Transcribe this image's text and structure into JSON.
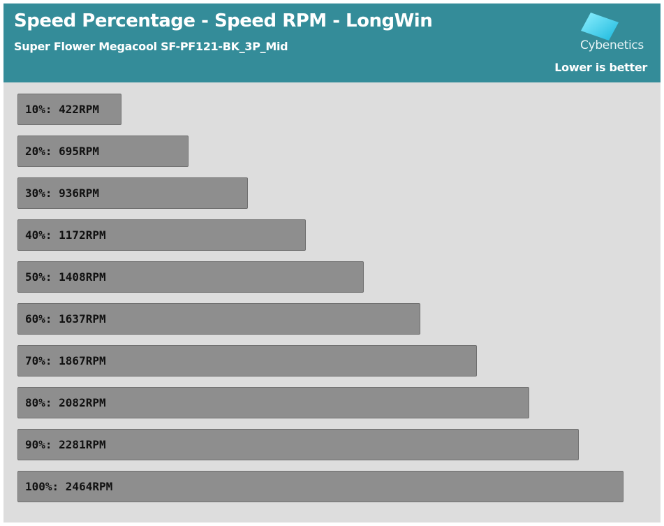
{
  "header": {
    "title": "Speed Percentage - Speed RPM - LongWin",
    "subtitle": "Super Flower Megacool SF-PF121-BK_3P_Mid",
    "brand": "Cybenetics",
    "note": "Lower is better"
  },
  "colors": {
    "header_bg": "#348c99",
    "plot_bg": "#dddddd",
    "bar_fill": "#8e8e8e",
    "logo_cyan": "#29c7e8"
  },
  "icons": {
    "logo": "cybenetics-logo-icon"
  },
  "chart_data": {
    "type": "bar",
    "orientation": "horizontal",
    "categories": [
      "10%",
      "20%",
      "30%",
      "40%",
      "50%",
      "60%",
      "70%",
      "80%",
      "90%",
      "100%"
    ],
    "values": [
      422,
      695,
      936,
      1172,
      1408,
      1637,
      1867,
      2082,
      2281,
      2464
    ],
    "unit": "RPM",
    "labels": [
      "10%: 422RPM",
      "20%: 695RPM",
      "30%: 936RPM",
      "40%: 1172RPM",
      "50%: 1408RPM",
      "60%: 1637RPM",
      "70%: 1867RPM",
      "80%: 2082RPM",
      "90%: 2281RPM",
      "100%: 2464RPM"
    ],
    "grid": false,
    "legend": "none"
  }
}
